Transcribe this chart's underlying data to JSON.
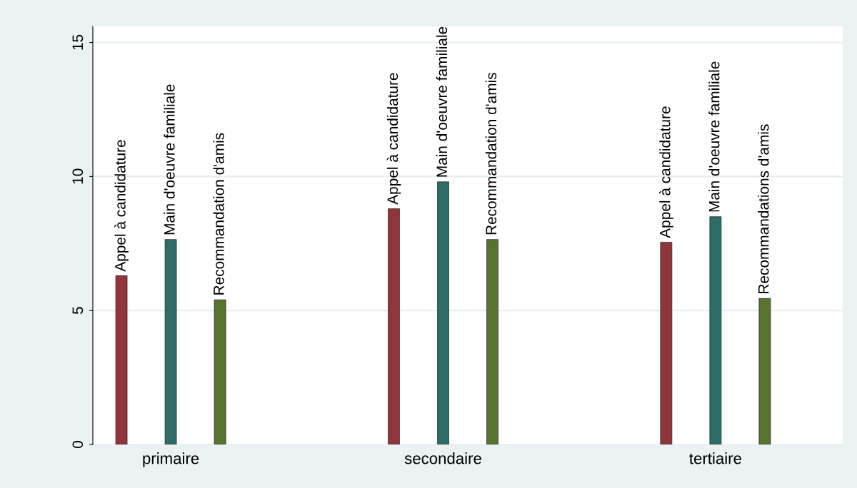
{
  "chart_data": {
    "type": "bar",
    "categories": [
      "primaire",
      "secondaire",
      "tertiaire"
    ],
    "series": [
      {
        "color": "#90353b",
        "values": [
          6.3,
          8.8,
          7.55
        ],
        "value_labels": [
          "Appel à candidature",
          "Appel à candidature",
          "Appel à candidature"
        ]
      },
      {
        "color": "#2d6d66",
        "values": [
          7.65,
          9.8,
          8.5
        ],
        "value_labels": [
          "Main d'oeuvre familiale",
          "Main d'oeuvre familiale",
          "Main d'oeuvre familiale"
        ]
      },
      {
        "color": "#55752f",
        "values": [
          5.4,
          7.65,
          5.45
        ],
        "value_labels": [
          "Recommandation d'amis",
          "Recommandation d'amis",
          "Recommandations d'amis"
        ]
      }
    ],
    "ylim": [
      0,
      15.6
    ],
    "yticks": [
      0,
      5,
      10,
      15
    ],
    "grid": "y"
  }
}
